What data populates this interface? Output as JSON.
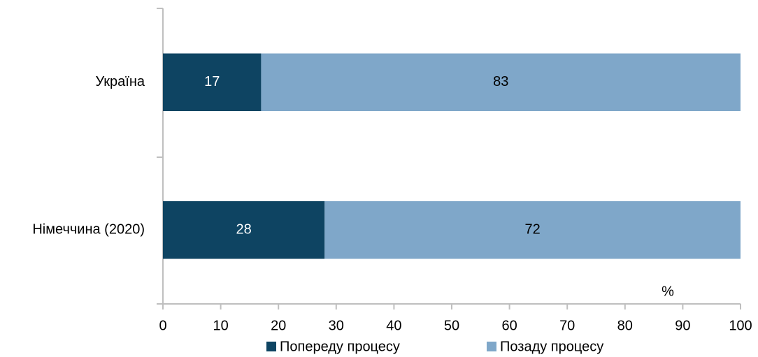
{
  "chart_data": {
    "type": "bar",
    "orientation": "horizontal",
    "stacked": true,
    "categories": [
      "Україна",
      "Німеччина (2020)"
    ],
    "series": [
      {
        "name": "Попереду процесу",
        "color": "#0e4462",
        "label_color": "#ffffff",
        "values": [
          17,
          28
        ]
      },
      {
        "name": "Позаду процесу",
        "color": "#7fa7c9",
        "label_color": "#000000",
        "values": [
          83,
          72
        ]
      }
    ],
    "xlim": [
      0,
      100
    ],
    "xticks": [
      0,
      10,
      20,
      30,
      40,
      50,
      60,
      70,
      80,
      90,
      100
    ],
    "unit_label": "%",
    "legend": "bottom",
    "grid": false
  }
}
